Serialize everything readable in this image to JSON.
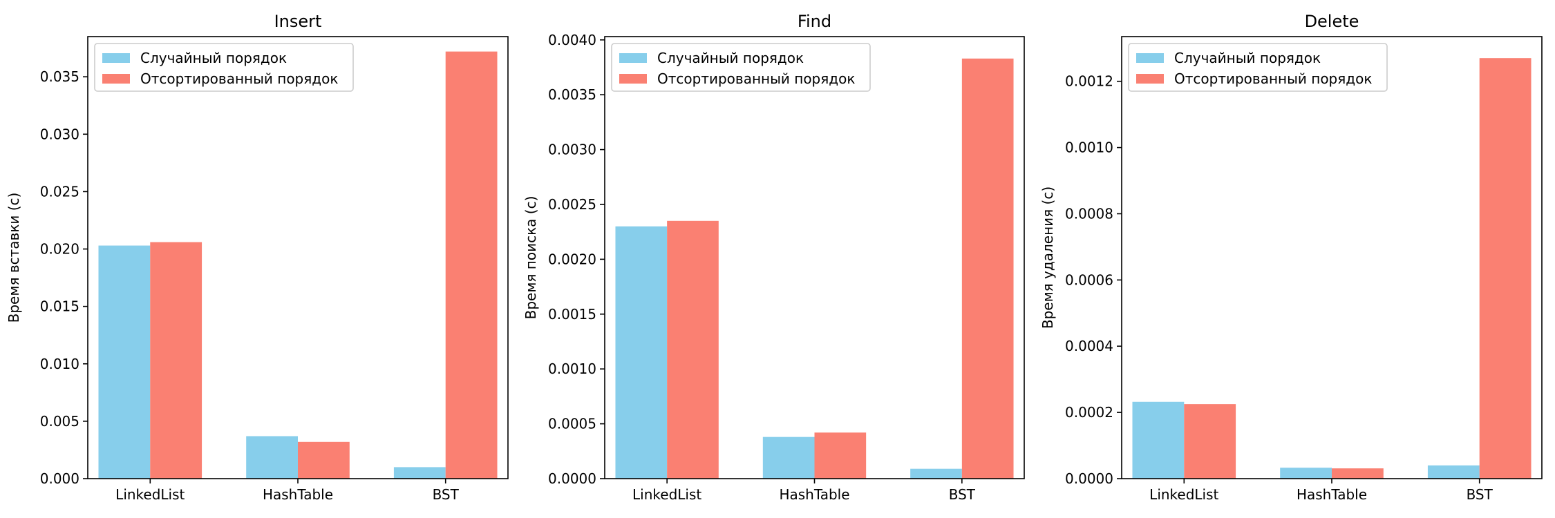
{
  "colors": {
    "random": "#87ceeb",
    "sorted": "#fa8072"
  },
  "chart_data": [
    {
      "type": "bar",
      "title": "Insert",
      "xlabel": "",
      "ylabel": "Время вставки (с)",
      "categories": [
        "LinkedList",
        "HashTable",
        "BST"
      ],
      "ylim": [
        0,
        0.0385
      ],
      "yticks": [
        0,
        0.005,
        0.01,
        0.015,
        0.02,
        0.025,
        0.03,
        0.035
      ],
      "ytick_labels": [
        "0.000",
        "0.005",
        "0.010",
        "0.015",
        "0.020",
        "0.025",
        "0.030",
        "0.035"
      ],
      "legend": "top-left",
      "grid": false,
      "series": [
        {
          "name": "Случайный порядок",
          "values": [
            0.0203,
            0.0037,
            0.001
          ]
        },
        {
          "name": "Отсортированный порядок",
          "values": [
            0.0206,
            0.0032,
            0.0372
          ]
        }
      ]
    },
    {
      "type": "bar",
      "title": "Find",
      "xlabel": "",
      "ylabel": "Время поиска (с)",
      "categories": [
        "LinkedList",
        "HashTable",
        "BST"
      ],
      "ylim": [
        0,
        0.00403
      ],
      "yticks": [
        0,
        0.0005,
        0.001,
        0.0015,
        0.002,
        0.0025,
        0.003,
        0.0035,
        0.004
      ],
      "ytick_labels": [
        "0.0000",
        "0.0005",
        "0.0010",
        "0.0015",
        "0.0020",
        "0.0025",
        "0.0030",
        "0.0035",
        "0.0040"
      ],
      "legend": "top-left",
      "grid": false,
      "series": [
        {
          "name": "Случайный порядок",
          "values": [
            0.0023,
            0.00038,
            9e-05
          ]
        },
        {
          "name": "Отсортированный порядок",
          "values": [
            0.00235,
            0.00042,
            0.00383
          ]
        }
      ]
    },
    {
      "type": "bar",
      "title": "Delete",
      "xlabel": "",
      "ylabel": "Время удаления (с)",
      "categories": [
        "LinkedList",
        "HashTable",
        "BST"
      ],
      "ylim": [
        0,
        0.001335
      ],
      "yticks": [
        0,
        0.0002,
        0.0004,
        0.0006,
        0.0008,
        0.001,
        0.0012
      ],
      "ytick_labels": [
        "0.0000",
        "0.0002",
        "0.0004",
        "0.0006",
        "0.0008",
        "0.0010",
        "0.0012"
      ],
      "legend": "top-left",
      "grid": false,
      "series": [
        {
          "name": "Случайный порядок",
          "values": [
            0.000232,
            3.3e-05,
            4e-05
          ]
        },
        {
          "name": "Отсортированный порядок",
          "values": [
            0.000225,
            3.1e-05,
            0.00127
          ]
        }
      ]
    }
  ]
}
